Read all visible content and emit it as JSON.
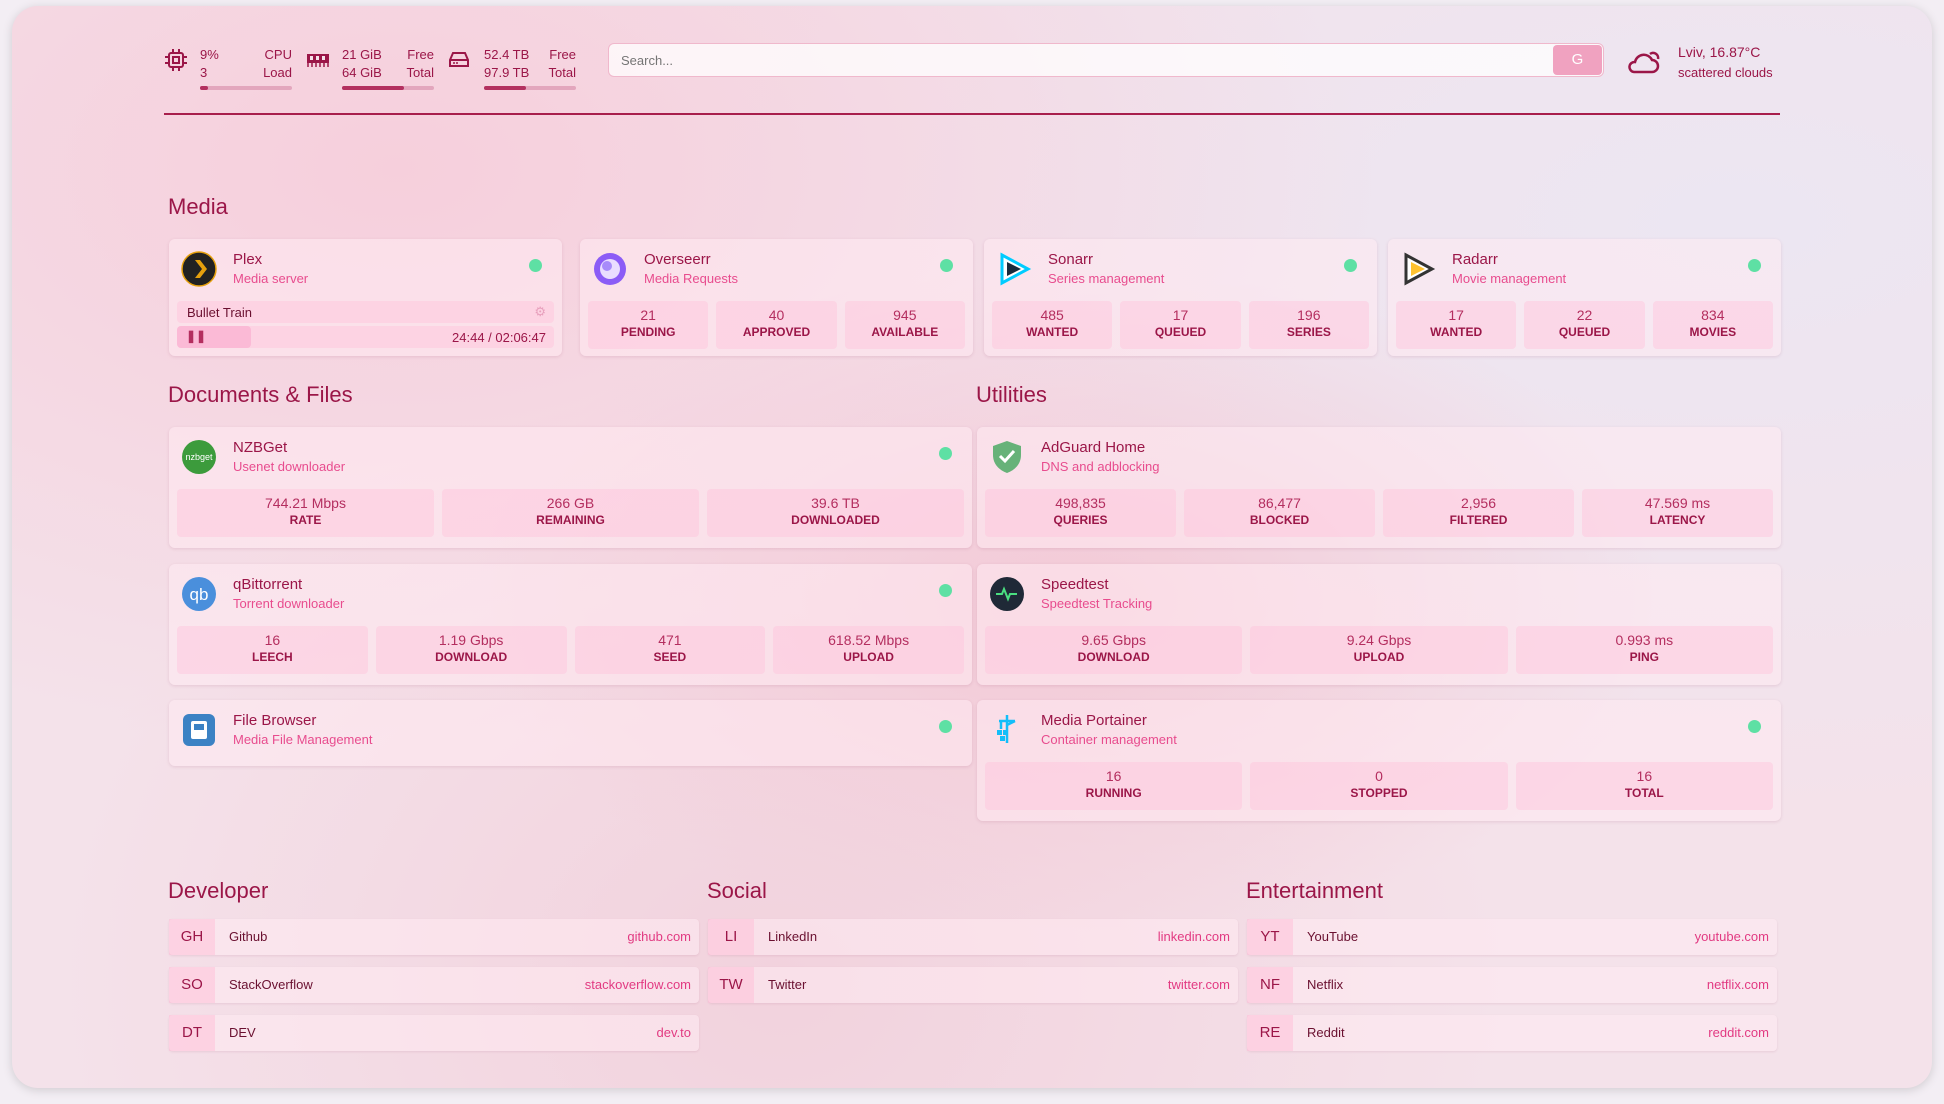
{
  "header": {
    "cpu": {
      "value": "9%",
      "label": "CPU",
      "sub": "3",
      "sublabel": "Load",
      "percent": 9,
      "icon": "cpu-icon"
    },
    "memory": {
      "value": "21 GiB",
      "label": "Free",
      "sub": "64 GiB",
      "sublabel": "Total",
      "percent": 67,
      "icon": "memory-icon"
    },
    "disk": {
      "value": "52.4 TB",
      "label": "Free",
      "sub": "97.9 TB",
      "sublabel": "Total",
      "percent": 46,
      "icon": "drive-icon"
    },
    "search": {
      "placeholder": "Search...",
      "button": "G"
    },
    "weather": {
      "location": "Lviv, 16.87°C",
      "condition": "scattered clouds",
      "icon": "cloud-icon"
    }
  },
  "colors": {
    "accent": "#9b1648",
    "subtitle": "#e84c8e",
    "status_up": "#5ee0a4"
  },
  "sections": {
    "media": "Media",
    "docs": "Documents & Files",
    "utilities": "Utilities",
    "developer": "Developer",
    "social": "Social",
    "entertainment": "Entertainment"
  },
  "plex": {
    "name": "Plex",
    "desc": "Media server",
    "title": "Bullet Train",
    "time": "24:44 / 02:06:47",
    "progress_percent": 19.5,
    "state": "playing"
  },
  "services": [
    {
      "id": "overseerr",
      "name": "Overseerr",
      "desc": "Media Requests",
      "stats": [
        {
          "v": "21",
          "k": "PENDING"
        },
        {
          "v": "40",
          "k": "APPROVED"
        },
        {
          "v": "945",
          "k": "AVAILABLE"
        }
      ]
    },
    {
      "id": "sonarr",
      "name": "Sonarr",
      "desc": "Series management",
      "stats": [
        {
          "v": "485",
          "k": "WANTED"
        },
        {
          "v": "17",
          "k": "QUEUED"
        },
        {
          "v": "196",
          "k": "SERIES"
        }
      ]
    },
    {
      "id": "radarr",
      "name": "Radarr",
      "desc": "Movie management",
      "stats": [
        {
          "v": "17",
          "k": "WANTED"
        },
        {
          "v": "22",
          "k": "QUEUED"
        },
        {
          "v": "834",
          "k": "MOVIES"
        }
      ]
    },
    {
      "id": "nzbget",
      "name": "NZBGet",
      "desc": "Usenet downloader",
      "stats": [
        {
          "v": "744.21 Mbps",
          "k": "RATE"
        },
        {
          "v": "266 GB",
          "k": "REMAINING"
        },
        {
          "v": "39.6 TB",
          "k": "DOWNLOADED"
        }
      ]
    },
    {
      "id": "qbittorrent",
      "name": "qBittorrent",
      "desc": "Torrent downloader",
      "stats": [
        {
          "v": "16",
          "k": "LEECH"
        },
        {
          "v": "1.19 Gbps",
          "k": "DOWNLOAD"
        },
        {
          "v": "471",
          "k": "SEED"
        },
        {
          "v": "618.52 Mbps",
          "k": "UPLOAD"
        }
      ]
    },
    {
      "id": "filebrowser",
      "name": "File Browser",
      "desc": "Media File Management",
      "stats": []
    },
    {
      "id": "adguard",
      "name": "AdGuard Home",
      "desc": "DNS and adblocking",
      "stats": [
        {
          "v": "498,835",
          "k": "QUERIES"
        },
        {
          "v": "86,477",
          "k": "BLOCKED"
        },
        {
          "v": "2,956",
          "k": "FILTERED"
        },
        {
          "v": "47.569 ms",
          "k": "LATENCY"
        }
      ]
    },
    {
      "id": "speedtest",
      "name": "Speedtest",
      "desc": "Speedtest Tracking",
      "stats": [
        {
          "v": "9.65 Gbps",
          "k": "DOWNLOAD"
        },
        {
          "v": "9.24 Gbps",
          "k": "UPLOAD"
        },
        {
          "v": "0.993 ms",
          "k": "PING"
        }
      ]
    },
    {
      "id": "portainer",
      "name": "Media Portainer",
      "desc": "Container management",
      "stats": [
        {
          "v": "16",
          "k": "RUNNING"
        },
        {
          "v": "0",
          "k": "STOPPED"
        },
        {
          "v": "16",
          "k": "TOTAL"
        }
      ]
    }
  ],
  "bookmarks": [
    [
      {
        "a": "GH",
        "t": "Github",
        "u": "github.com"
      },
      {
        "a": "SO",
        "t": "StackOverflow",
        "u": "stackoverflow.com"
      },
      {
        "a": "DT",
        "t": "DEV",
        "u": "dev.to"
      }
    ],
    [
      {
        "a": "LI",
        "t": "LinkedIn",
        "u": "linkedin.com"
      },
      {
        "a": "TW",
        "t": "Twitter",
        "u": "twitter.com"
      }
    ],
    [
      {
        "a": "YT",
        "t": "YouTube",
        "u": "youtube.com"
      },
      {
        "a": "NF",
        "t": "Netflix",
        "u": "netflix.com"
      },
      {
        "a": "RE",
        "t": "Reddit",
        "u": "reddit.com"
      }
    ]
  ]
}
